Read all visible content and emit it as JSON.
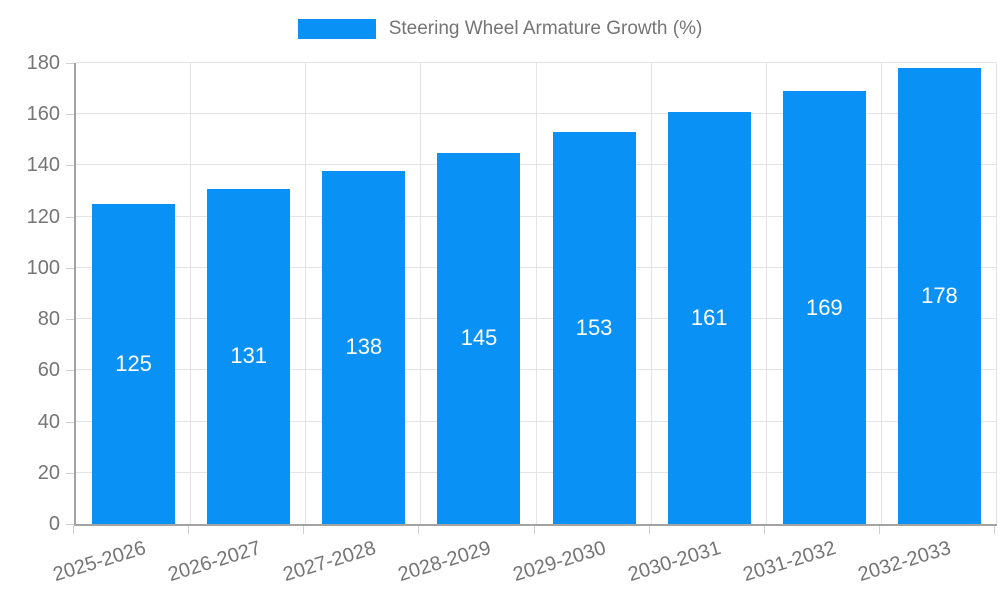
{
  "chart_data": {
    "type": "bar",
    "title": "Steering Wheel Armature Growth (%)",
    "legend": [
      "Steering Wheel Armature Growth (%)"
    ],
    "legend_position": "top-center",
    "categories": [
      "2025-2026",
      "2026-2027",
      "2027-2028",
      "2028-2029",
      "2029-2030",
      "2030-2031",
      "2031-2032",
      "2032-2033"
    ],
    "values": [
      125,
      131,
      138,
      145,
      153,
      161,
      169,
      178
    ],
    "xlabel": "",
    "ylabel": "",
    "ylim": [
      0,
      180
    ],
    "yticks": [
      0,
      20,
      40,
      60,
      80,
      100,
      120,
      140,
      160,
      180
    ],
    "grid": true,
    "bar_label_position": "inside-center",
    "xtick_rotation_deg": -17
  },
  "colors": {
    "bar": "#0a91f5",
    "grid": "#e4e4e4",
    "axis": "#a3a3a3",
    "tick": "#cfcfcf",
    "text": "#757575",
    "bar_label": "#ffffff",
    "background": "#ffffff"
  }
}
